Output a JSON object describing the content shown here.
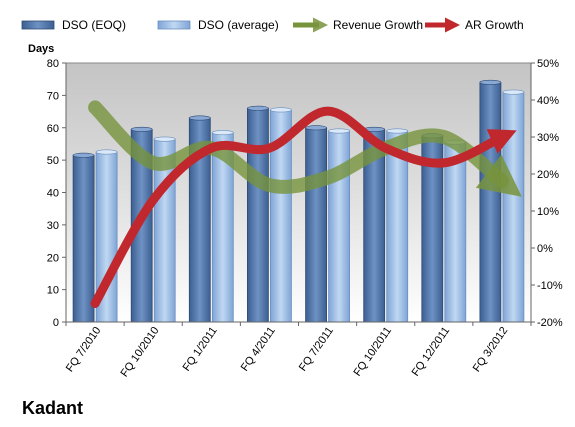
{
  "company": "Kadant",
  "chart_data": {
    "type": "bar",
    "title": "",
    "ylabel": "Days",
    "categories": [
      "FQ 7/2010",
      "FQ 10/2010",
      "FQ 1/2011",
      "FQ 4/2011",
      "FQ 7/2011",
      "FQ 10/2011",
      "FQ 12/2011",
      "FQ 3/2012"
    ],
    "ylim": [
      0,
      80
    ],
    "yticks": [
      0,
      10,
      20,
      30,
      40,
      50,
      60,
      70,
      80
    ],
    "y2lim": [
      -20,
      50
    ],
    "y2ticks": [
      "-20%",
      "-10%",
      "0%",
      "10%",
      "20%",
      "30%",
      "40%",
      "50%"
    ],
    "legend_position": "top",
    "grid": false,
    "series": [
      {
        "name": "DSO (EOQ)",
        "kind": "bar",
        "axis": "left",
        "color": "#4a6fa5",
        "values": [
          51.5,
          59.5,
          63,
          66,
          60,
          59.5,
          57.5,
          74
        ]
      },
      {
        "name": "DSO (average)",
        "kind": "bar",
        "axis": "left",
        "color": "#8fb4e3",
        "values": [
          52.5,
          56.5,
          58.5,
          65.5,
          59,
          59,
          55.5,
          71
        ]
      },
      {
        "name": "Revenue Growth",
        "kind": "line",
        "axis": "right",
        "color": "#77933c",
        "values": [
          38,
          23,
          27,
          17,
          19,
          27,
          30,
          18
        ]
      },
      {
        "name": "AR Growth",
        "kind": "line",
        "axis": "right",
        "color": "#c0282d",
        "values": [
          -15,
          13,
          27,
          27,
          37,
          27,
          23,
          30
        ]
      }
    ]
  }
}
